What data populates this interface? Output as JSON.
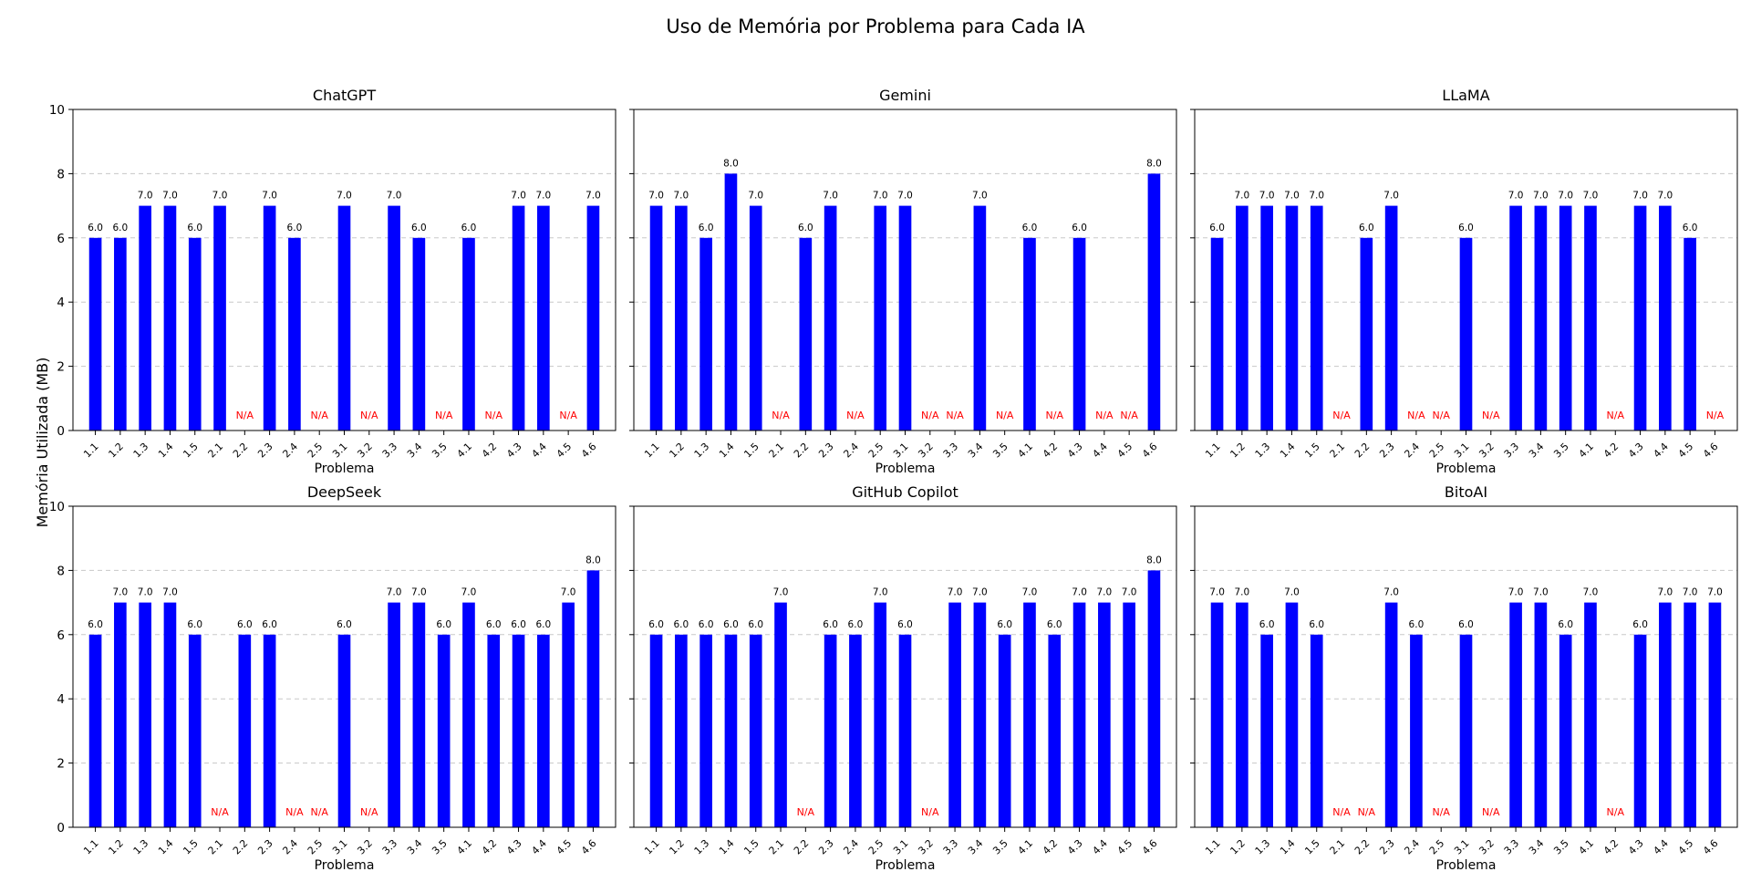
{
  "figure": {
    "title": "Uso de Memória por Problema para Cada IA",
    "ylabel": "Memória Utilizada (MB)"
  },
  "chart_data": {
    "type": "bar",
    "bar_color": "#0000ff",
    "na_color": "#ff0000",
    "na_label": "N/A",
    "xlabel": "Problema",
    "ylim": [
      0,
      10
    ],
    "yticks": [
      0,
      2,
      4,
      6,
      8,
      10
    ],
    "grid": true,
    "categories": [
      "1.1",
      "1.2",
      "1.3",
      "1.4",
      "1.5",
      "2.1",
      "2.2",
      "2.3",
      "2.4",
      "2.5",
      "3.1",
      "3.2",
      "3.3",
      "3.4",
      "3.5",
      "4.1",
      "4.2",
      "4.3",
      "4.4",
      "4.5",
      "4.6"
    ],
    "panels": [
      {
        "title": "ChatGPT",
        "values": [
          6,
          6,
          7,
          7,
          6,
          7,
          null,
          7,
          6,
          null,
          7,
          null,
          7,
          6,
          null,
          6,
          null,
          7,
          7,
          null,
          7
        ]
      },
      {
        "title": "Gemini",
        "values": [
          7,
          7,
          6,
          8,
          7,
          null,
          6,
          7,
          null,
          7,
          7,
          null,
          null,
          7,
          null,
          6,
          null,
          6,
          null,
          null,
          8
        ]
      },
      {
        "title": "LLaMA",
        "values": [
          6,
          7,
          7,
          7,
          7,
          null,
          6,
          7,
          null,
          null,
          6,
          null,
          7,
          7,
          7,
          7,
          null,
          7,
          7,
          6,
          null
        ]
      },
      {
        "title": "DeepSeek",
        "values": [
          6,
          7,
          7,
          7,
          6,
          null,
          6,
          6,
          null,
          null,
          6,
          null,
          7,
          7,
          6,
          7,
          6,
          6,
          6,
          7,
          8
        ]
      },
      {
        "title": "GitHub Copilot",
        "values": [
          6,
          6,
          6,
          6,
          6,
          7,
          null,
          6,
          6,
          7,
          6,
          null,
          7,
          7,
          6,
          7,
          6,
          7,
          7,
          7,
          8
        ]
      },
      {
        "title": "BitoAI",
        "values": [
          7,
          7,
          6,
          7,
          6,
          null,
          null,
          7,
          6,
          null,
          6,
          null,
          7,
          7,
          6,
          7,
          null,
          6,
          7,
          7,
          7
        ]
      }
    ]
  }
}
